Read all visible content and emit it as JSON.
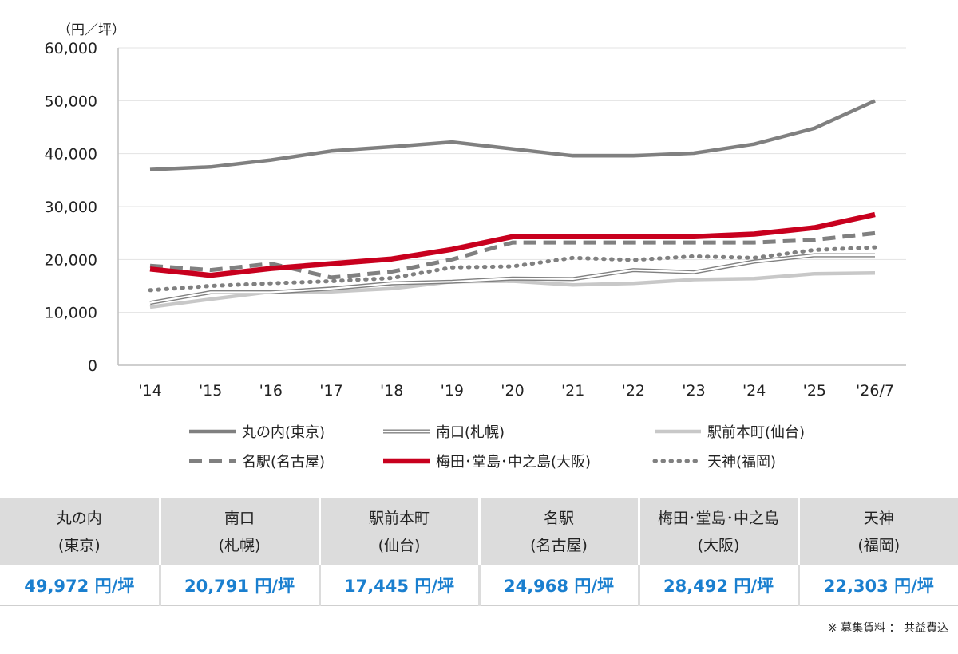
{
  "chart_data": {
    "type": "line",
    "unit_label": "（円／坪）",
    "x": [
      "'14",
      "'15",
      "'16",
      "'17",
      "'18",
      "'19",
      "'20",
      "'21",
      "'22",
      "'23",
      "'24",
      "'25",
      "'26/7"
    ],
    "ylim": [
      0,
      60000
    ],
    "yticks": [
      "0",
      "10,000",
      "20,000",
      "30,000",
      "40,000",
      "50,000",
      "60,000"
    ],
    "ytick_values": [
      0,
      10000,
      20000,
      30000,
      40000,
      50000,
      60000
    ],
    "grid": true,
    "legend_position": "bottom",
    "series": [
      {
        "name": "丸の内(東京)",
        "style": "solid-thick",
        "color": "#808080",
        "values": [
          37000,
          37500,
          38800,
          40500,
          41300,
          42200,
          40900,
          39600,
          39600,
          40100,
          41800,
          44800,
          49972
        ]
      },
      {
        "name": "南口(札幌)",
        "style": "double",
        "color": "#808080",
        "values": [
          11800,
          13800,
          13800,
          14500,
          15500,
          15800,
          16400,
          16300,
          18000,
          17600,
          19600,
          20800,
          20791
        ]
      },
      {
        "name": "駅前本町(仙台)",
        "style": "solid-light",
        "color": "#c8c8c8",
        "values": [
          11000,
          12500,
          13900,
          13900,
          14500,
          15800,
          15900,
          15200,
          15500,
          16200,
          16400,
          17300,
          17445
        ]
      },
      {
        "name": "名駅(名古屋)",
        "style": "dashed",
        "color": "#808080",
        "values": [
          18800,
          18000,
          19200,
          16600,
          17700,
          20000,
          23200,
          23200,
          23200,
          23200,
          23200,
          23700,
          24968
        ]
      },
      {
        "name": "梅田･堂島･中之島(大阪)",
        "style": "solid-red",
        "color": "#c8001e",
        "values": [
          18200,
          17000,
          18300,
          19200,
          20100,
          21900,
          24300,
          24300,
          24300,
          24300,
          24800,
          26000,
          28492
        ]
      },
      {
        "name": "天神(福岡)",
        "style": "dotted",
        "color": "#808080",
        "values": [
          14200,
          15000,
          15500,
          15900,
          16500,
          18500,
          18700,
          20300,
          19900,
          20600,
          20300,
          21800,
          22303
        ]
      }
    ]
  },
  "legend": {
    "items": [
      {
        "label": "丸の内(東京)"
      },
      {
        "label": "南口(札幌)"
      },
      {
        "label": "駅前本町(仙台)"
      },
      {
        "label": "名駅(名古屋)"
      },
      {
        "label": "梅田･堂島･中之島(大阪)"
      },
      {
        "label": "天神(福岡)"
      }
    ]
  },
  "table": {
    "headers": [
      {
        "line1": "丸の内",
        "line2": "(東京)"
      },
      {
        "line1": "南口",
        "line2": "(札幌)"
      },
      {
        "line1": "駅前本町",
        "line2": "(仙台)"
      },
      {
        "line1": "名駅",
        "line2": "(名古屋)"
      },
      {
        "line1": "梅田･堂島･中之島",
        "line2": "(大阪)"
      },
      {
        "line1": "天神",
        "line2": "(福岡)"
      }
    ],
    "values": [
      "49,972 円/坪",
      "20,791 円/坪",
      "17,445 円/坪",
      "24,968 円/坪",
      "28,492 円/坪",
      "22,303 円/坪"
    ],
    "value_color": "#1a7fcf"
  },
  "note": "※ 募集賃料 ： 共益費込"
}
